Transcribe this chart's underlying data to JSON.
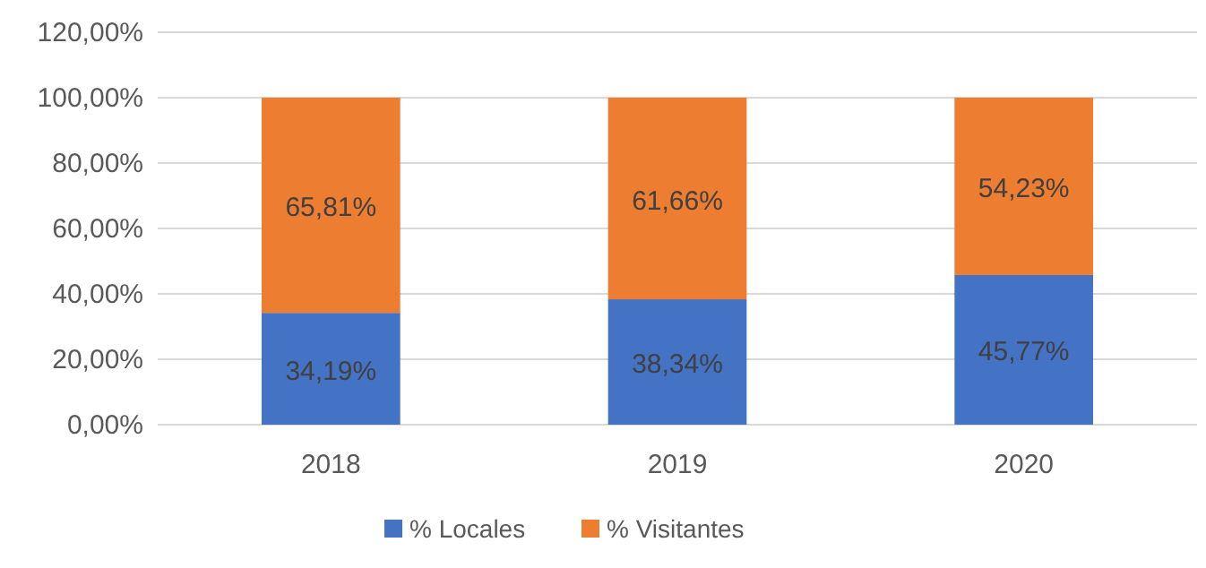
{
  "chart_data": {
    "type": "bar",
    "stacked": true,
    "categories": [
      "2018",
      "2019",
      "2020"
    ],
    "series": [
      {
        "name": "% Locales",
        "color": "#4472c4",
        "values": [
          34.19,
          38.34,
          45.77
        ],
        "value_labels": [
          "34,19%",
          "38,34%",
          "45,77%"
        ]
      },
      {
        "name": "% Visitantes",
        "color": "#ed7d31",
        "values": [
          65.81,
          61.66,
          54.23
        ],
        "value_labels": [
          "65,81%",
          "61,66%",
          "54,23%"
        ]
      }
    ],
    "ylim": [
      0,
      120
    ],
    "yticks": [
      {
        "value": 0,
        "label": "0,00%"
      },
      {
        "value": 20,
        "label": "20,00%"
      },
      {
        "value": 40,
        "label": "40,00%"
      },
      {
        "value": 60,
        "label": "60,00%"
      },
      {
        "value": 80,
        "label": "80,00%"
      },
      {
        "value": 100,
        "label": "100,00%"
      },
      {
        "value": 120,
        "label": "120,00%"
      }
    ],
    "grid": "y",
    "legend": "bottom"
  }
}
